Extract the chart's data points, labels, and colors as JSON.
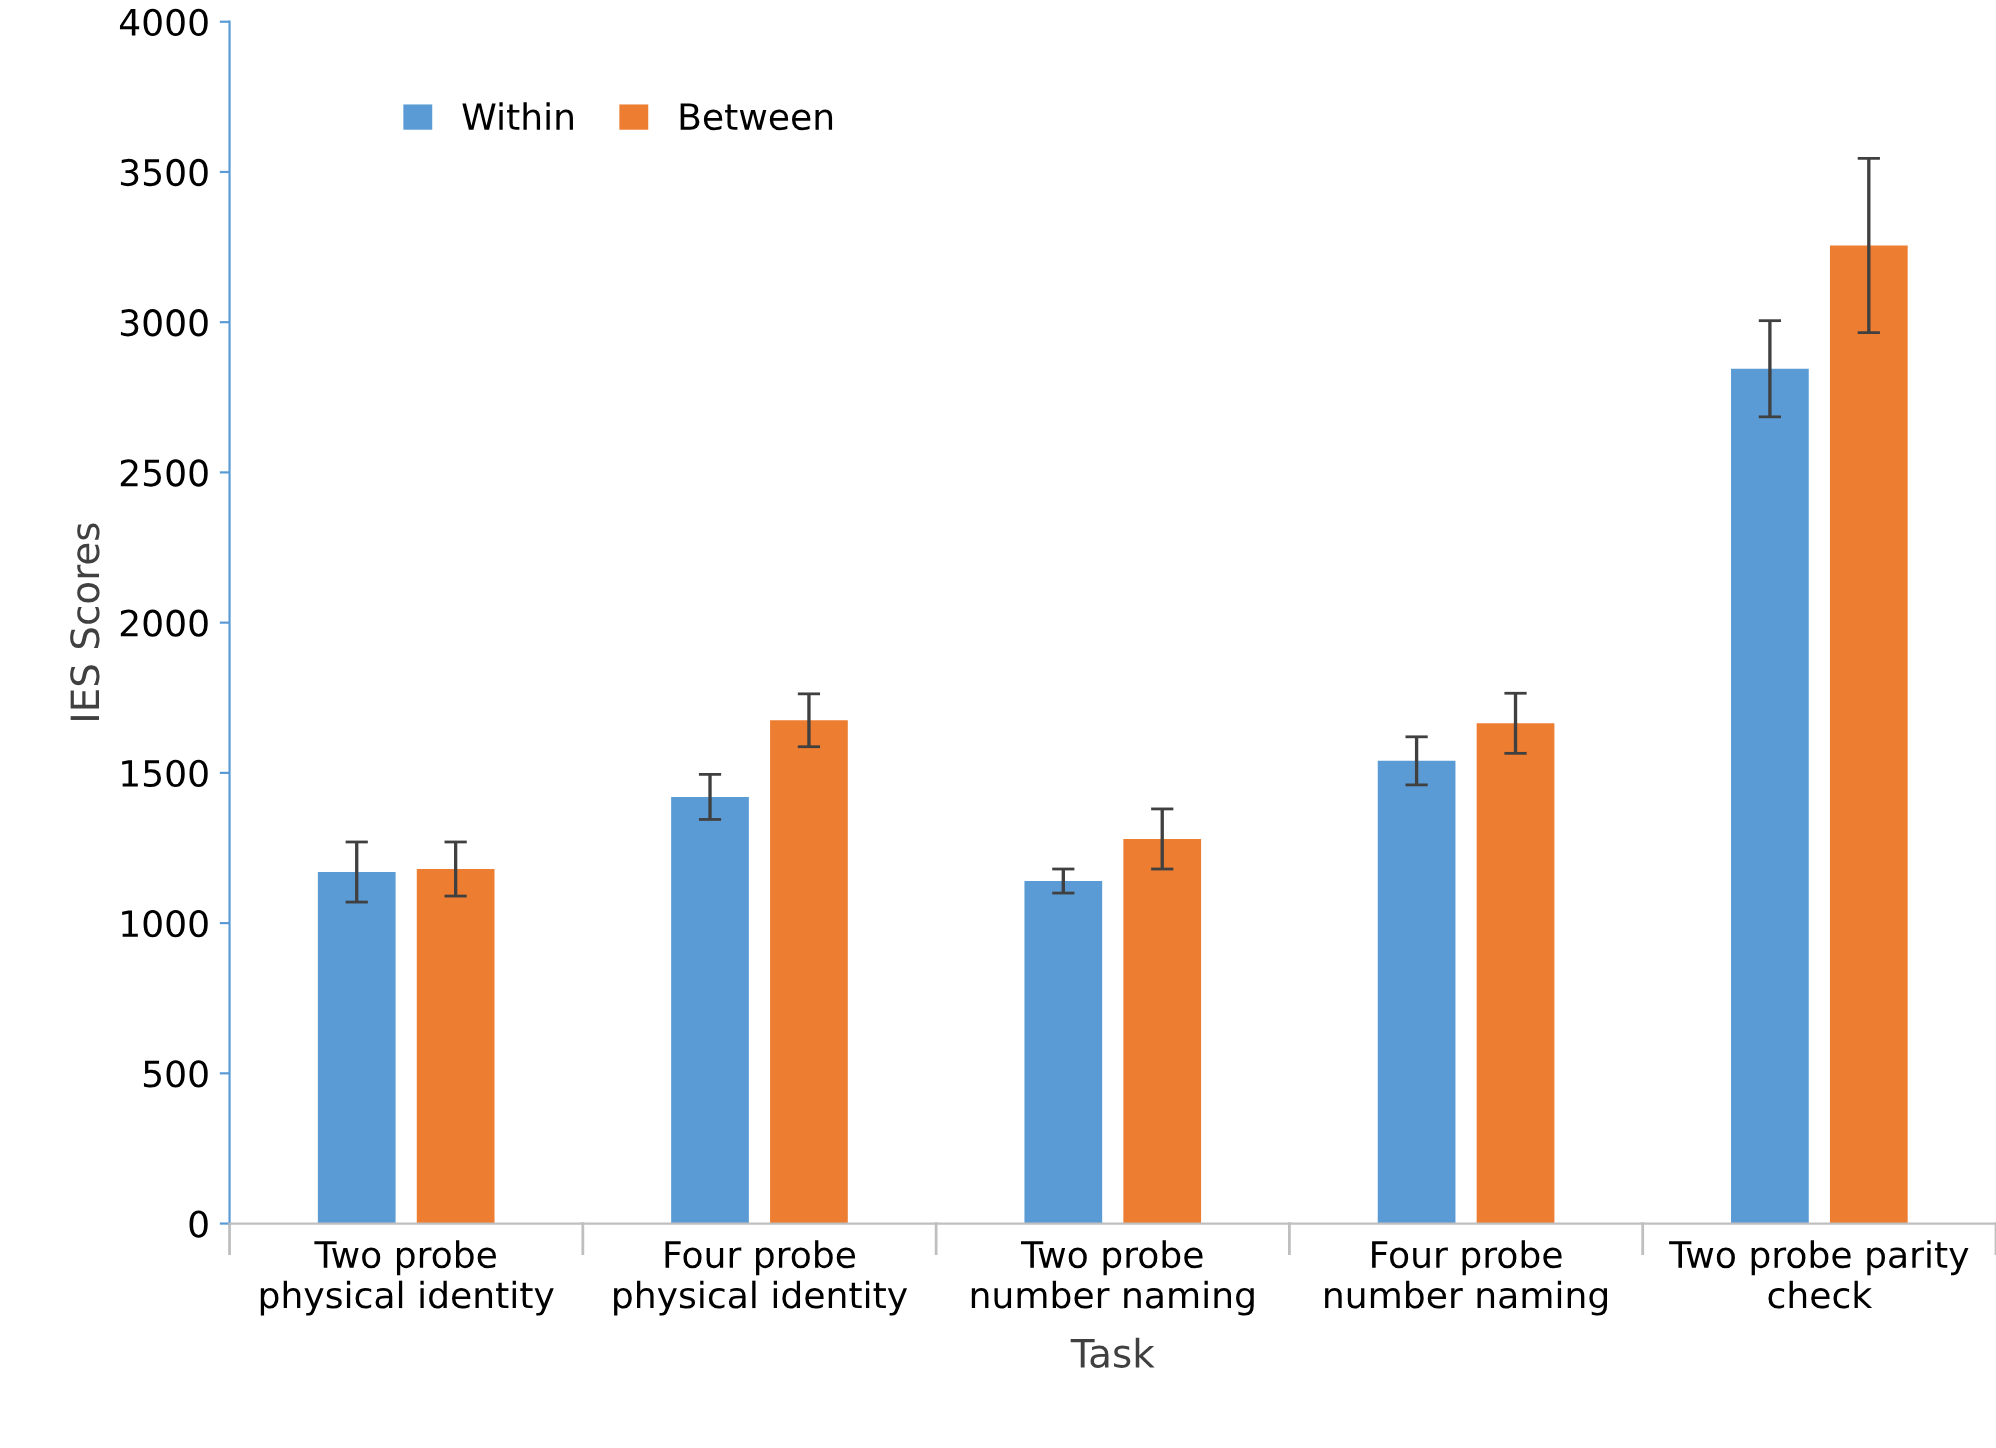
{
  "chart_data": {
    "type": "bar",
    "xlabel": "Task",
    "ylabel": "IES Scores",
    "categories": [
      "Two probe\nphysical identity",
      "Four probe\nphysical identity",
      "Two probe\nnumber naming",
      "Four probe\nnumber naming",
      "Two probe parity\ncheck"
    ],
    "series": [
      {
        "name": "Within",
        "color": "#5b9bd5",
        "values": [
          1170,
          1420,
          1140,
          1540,
          2845
        ],
        "errors": [
          100,
          75,
          40,
          80,
          160
        ]
      },
      {
        "name": "Between",
        "color": "#ed7d31",
        "values": [
          1180,
          1675,
          1280,
          1665,
          3255
        ],
        "errors": [
          90,
          88,
          100,
          100,
          290
        ]
      }
    ],
    "ylim": [
      0,
      4000
    ],
    "yticks": [
      0,
      500,
      1000,
      1500,
      2000,
      2500,
      3000,
      3500,
      4000
    ],
    "grid": false,
    "legend": "top left"
  }
}
